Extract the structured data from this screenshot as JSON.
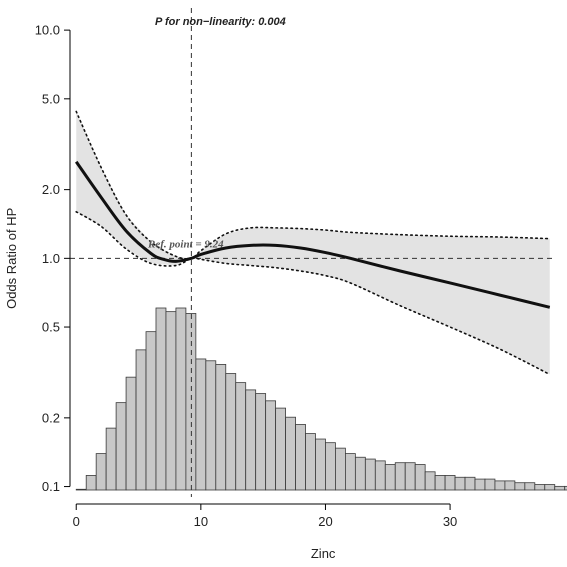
{
  "chart_data": {
    "type": "line",
    "title": "",
    "xlabel": "Zinc",
    "ylabel": "Odds Ratio of HP",
    "x_scale": "linear",
    "y_scale": "log",
    "xlim": [
      -0.5,
      38.5
    ],
    "ylim": [
      0.09,
      12.5
    ],
    "x_ticks": [
      0,
      10,
      20,
      30
    ],
    "x_tick_labels": [
      "0",
      "10",
      "20",
      "30"
    ],
    "y_ticks": [
      0.1,
      0.2,
      0.5,
      1.0,
      2.0,
      5.0,
      10.0
    ],
    "y_tick_labels": [
      "0.1",
      "0.2",
      "0.5",
      "1.0",
      "2.0",
      "5.0",
      "10.0"
    ],
    "grid": false,
    "legend": "none",
    "annotations": {
      "p_nonlinearity": "P for non−linearity: 0.004",
      "ref_point": "Ref. point = 9.24"
    },
    "reference": {
      "x": 9.24,
      "y": 1.0
    },
    "series": [
      {
        "role": "estimate",
        "x": [
          0,
          2,
          4,
          6,
          7,
          8,
          9.24,
          10,
          12,
          14,
          16,
          18,
          20,
          22,
          26,
          30,
          34,
          38
        ],
        "y": [
          2.65,
          1.85,
          1.32,
          1.05,
          0.99,
          0.97,
          1.0,
          1.04,
          1.11,
          1.14,
          1.14,
          1.11,
          1.06,
          1.0,
          0.88,
          0.78,
          0.69,
          0.61
        ]
      },
      {
        "role": "ci-upper",
        "x": [
          0,
          2,
          4,
          6,
          8,
          9.24,
          10,
          12,
          14,
          16,
          18,
          20,
          22,
          26,
          30,
          34,
          38
        ],
        "y": [
          4.4,
          2.5,
          1.55,
          1.18,
          1.02,
          1.0,
          1.08,
          1.28,
          1.36,
          1.36,
          1.35,
          1.33,
          1.3,
          1.27,
          1.25,
          1.24,
          1.22
        ]
      },
      {
        "role": "ci-lower",
        "x": [
          0,
          2,
          4,
          6,
          8,
          9.24,
          10,
          12,
          14,
          16,
          18,
          20,
          22,
          26,
          30,
          34,
          38
        ],
        "y": [
          1.6,
          1.38,
          1.1,
          0.95,
          0.93,
          1.0,
          0.99,
          0.95,
          0.93,
          0.91,
          0.88,
          0.84,
          0.78,
          0.62,
          0.5,
          0.4,
          0.31
        ]
      }
    ],
    "histogram": {
      "bin_start": 0,
      "bin_width": 0.8,
      "density": [
        0.004,
        0.08,
        0.2,
        0.34,
        0.48,
        0.62,
        0.77,
        0.87,
        1.0,
        0.98,
        1.0,
        0.97,
        0.72,
        0.71,
        0.69,
        0.64,
        0.59,
        0.55,
        0.53,
        0.49,
        0.45,
        0.4,
        0.36,
        0.31,
        0.28,
        0.26,
        0.23,
        0.2,
        0.18,
        0.17,
        0.16,
        0.14,
        0.15,
        0.15,
        0.14,
        0.1,
        0.08,
        0.08,
        0.07,
        0.07,
        0.06,
        0.06,
        0.05,
        0.05,
        0.04,
        0.04,
        0.03,
        0.03,
        0.02,
        0.02,
        0.02,
        0.015,
        0.015,
        0.015,
        0.01,
        0.01
      ]
    }
  }
}
